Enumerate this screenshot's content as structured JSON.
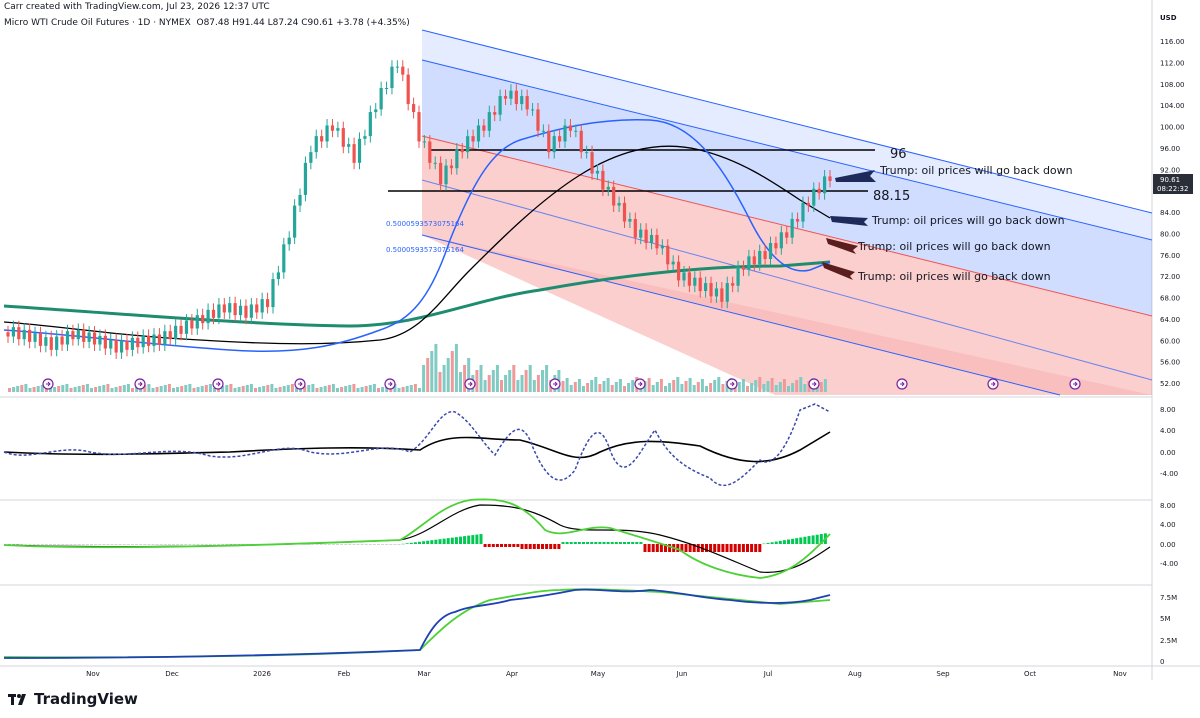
{
  "header": {
    "created_by": "Carr created with TradingView.com, Jul 23, 2026 12:37 UTC",
    "symbol": "Micro WTI Crude Oil Futures · 1D · NYMEX",
    "ohlc": "O87.48 H91.44 L87.24 C90.61 +3.78 (+4.35%)"
  },
  "brand": {
    "logo_text": "TradingView",
    "icon": "tradingview-logo-icon"
  },
  "axis": {
    "currency": "USD",
    "price_ticks": [
      "116.00",
      "112.00",
      "108.00",
      "104.00",
      "100.00",
      "96.00",
      "92.00",
      "88.00",
      "84.00",
      "80.00",
      "76.00",
      "72.00",
      "68.00",
      "64.00",
      "60.00",
      "56.00",
      "52.00"
    ],
    "price_label": {
      "value": "90.61",
      "countdown": "08:22:32"
    },
    "osc_ticks": [
      "8.00",
      "4.00",
      "0.00",
      "-4.00"
    ],
    "macd_ticks": [
      "8.00",
      "4.00",
      "0.00",
      "-4.00"
    ],
    "obv_ticks": [
      "7.5M",
      "5M",
      "2.5M",
      "0"
    ],
    "x_ticks": [
      "Nov",
      "Dec",
      "2026",
      "Feb",
      "Mar",
      "Apr",
      "May",
      "Jun",
      "Jul",
      "Aug",
      "Sep",
      "Oct",
      "Nov"
    ]
  },
  "annotations": {
    "level_96": "96",
    "level_88": "88.15",
    "fib_1": "0.5000593573075164",
    "fib_2": "0.5000593573075164",
    "trump_1": "Trump: oil prices will go back down",
    "trump_2": "Trump: oil prices will go back down",
    "trump_3": "Trump: oil prices will go back down",
    "trump_4": "Trump: oil prices will go back down"
  },
  "colors": {
    "up": "#26a69a",
    "down": "#ef5350",
    "ma_black": "#000000",
    "ma_blue": "#2962ff",
    "ma_green": "#1e8c6e",
    "channel_blue": "#2962ff",
    "macd_line": "#4cd137",
    "obv_line": "#1e3fb5"
  },
  "chart_data": {
    "type": "candlestick",
    "title": "Micro WTI Crude Oil Futures · 1D · NYMEX",
    "ylabel": "USD",
    "ylim": [
      50,
      118
    ],
    "x": [
      "Nov",
      "Dec",
      "2026",
      "Feb",
      "Mar",
      "Apr",
      "May",
      "Jun",
      "Jul",
      "Aug",
      "Sep",
      "Oct",
      "Nov"
    ],
    "close_path": [
      61.5,
      60.5,
      59,
      61,
      60,
      58.5,
      59.5,
      60,
      62,
      64,
      66,
      65,
      67,
      80,
      96,
      100,
      94,
      104,
      112,
      98,
      90,
      96,
      100,
      106,
      104,
      96,
      100,
      92,
      86,
      80,
      78,
      72,
      70,
      68,
      74,
      76,
      80,
      86,
      90.61
    ],
    "horizontal_levels": [
      96,
      88.15
    ],
    "last": {
      "open": 87.48,
      "high": 91.44,
      "low": 87.24,
      "close": 90.61,
      "change": 3.78,
      "change_pct": 4.35
    }
  }
}
